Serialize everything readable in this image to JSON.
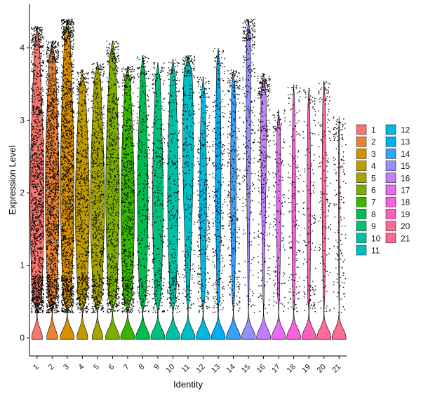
{
  "chart_data": {
    "type": "violin",
    "title": "",
    "xlabel": "Identity",
    "ylabel": "Expression Level",
    "ylim": [
      -0.25,
      4.6
    ],
    "yticks": [
      "0",
      "1",
      "2",
      "3",
      "4"
    ],
    "categories": [
      "1",
      "2",
      "3",
      "4",
      "5",
      "6",
      "7",
      "8",
      "9",
      "10",
      "11",
      "12",
      "13",
      "14",
      "15",
      "16",
      "17",
      "18",
      "19",
      "20",
      "21"
    ],
    "series": [
      {
        "name": "1",
        "color": "#F8766D",
        "max": 4.3,
        "peak": 1.9,
        "zero_frac": 0.2,
        "density": "very-high"
      },
      {
        "name": "2",
        "color": "#E58700",
        "max": 4.1,
        "peak": 2.0,
        "zero_frac": 0.2,
        "density": "very-high"
      },
      {
        "name": "3",
        "color": "#C99800",
        "max": 4.4,
        "peak": 2.1,
        "zero_frac": 0.25,
        "density": "very-high"
      },
      {
        "name": "4",
        "color": "#A3A500",
        "max": 3.7,
        "peak": 1.8,
        "zero_frac": 0.2,
        "density": "high"
      },
      {
        "name": "5",
        "color": "#6BB100",
        "max": 3.8,
        "peak": 1.9,
        "zero_frac": 0.2,
        "density": "high"
      },
      {
        "name": "6",
        "color": "#00BA38",
        "max": 4.1,
        "peak": 2.0,
        "zero_frac": 0.25,
        "density": "high"
      },
      {
        "name": "7",
        "color": "#00BF7D",
        "max": 3.75,
        "peak": 1.8,
        "zero_frac": 0.25,
        "density": "high"
      },
      {
        "name": "8",
        "color": "#00C0AF",
        "max": 3.9,
        "peak": 1.9,
        "zero_frac": 0.3,
        "density": "medium"
      },
      {
        "name": "9",
        "color": "#00BCD8",
        "max": 3.8,
        "peak": 1.9,
        "zero_frac": 0.3,
        "density": "medium"
      },
      {
        "name": "10",
        "color": "#00B0F6",
        "max": 3.85,
        "peak": 2.0,
        "zero_frac": 0.3,
        "density": "medium"
      },
      {
        "name": "11",
        "color": "#35A2FF",
        "max": 3.9,
        "peak": 2.7,
        "zero_frac": 0.3,
        "density": "medium"
      },
      {
        "name": "12",
        "color": "#9590FF",
        "max": 3.6,
        "peak": 2.0,
        "zero_frac": 0.4,
        "density": "medium"
      },
      {
        "name": "13",
        "color": "#C77CFF",
        "max": 4.0,
        "peak": 2.3,
        "zero_frac": 0.45,
        "density": "medium"
      },
      {
        "name": "14",
        "color": "#E76BF3",
        "max": 3.7,
        "peak": 2.2,
        "zero_frac": 0.45,
        "density": "medium"
      },
      {
        "name": "15",
        "color": "#FA62DB",
        "max": 4.4,
        "peak": 3.2,
        "zero_frac": 0.5,
        "density": "medium"
      },
      {
        "name": "16",
        "color": "#FF62BC",
        "max": 3.65,
        "peak": 2.8,
        "zero_frac": 0.45,
        "density": "medium"
      },
      {
        "name": "17",
        "color": "#FF6C90",
        "max": 3.15,
        "peak": 2.0,
        "zero_frac": 0.5,
        "density": "low"
      },
      {
        "name": "18",
        "color": "#F8766D",
        "max": 3.5,
        "peak": 1.8,
        "zero_frac": 0.55,
        "density": "low"
      },
      {
        "name": "19",
        "color": "#E58700",
        "max": 3.45,
        "peak": 1.8,
        "zero_frac": 0.55,
        "density": "low"
      },
      {
        "name": "20",
        "color": "#C99800",
        "max": 3.55,
        "peak": 2.1,
        "zero_frac": 0.55,
        "density": "low"
      },
      {
        "name": "21",
        "color": "#FF6C91",
        "max": 3.05,
        "peak": 2.0,
        "zero_frac": 0.8,
        "density": "low"
      }
    ],
    "palette_exact": [
      "#F8766D",
      "#EA8331",
      "#D89000",
      "#C09B00",
      "#A3A500",
      "#7CAE00",
      "#39B600",
      "#00BB4E",
      "#00BF7D",
      "#00C1A3",
      "#00BFC4",
      "#00BAE0",
      "#00B0F6",
      "#35A2FF",
      "#9590FF",
      "#C77CFF",
      "#E76BF3",
      "#FA62DB",
      "#FF62BC",
      "#FF6A98",
      "#FF6C91"
    ],
    "legend": {
      "position": "right",
      "columns": 2,
      "labels": [
        "1",
        "2",
        "3",
        "4",
        "5",
        "6",
        "7",
        "8",
        "9",
        "10",
        "11",
        "12",
        "13",
        "14",
        "15",
        "16",
        "17",
        "18",
        "19",
        "20",
        "21"
      ]
    },
    "grid": false,
    "jitter_points": true
  }
}
